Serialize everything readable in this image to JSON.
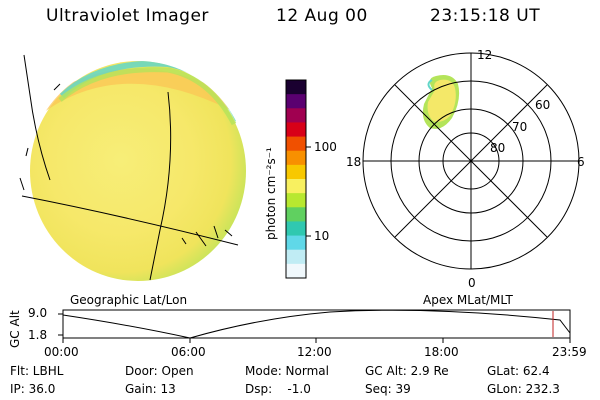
{
  "header": {
    "title": "Ultraviolet Imager",
    "date": "12 Aug 00",
    "time": "23:15:18 UT"
  },
  "colorbar": {
    "label": "photon cm⁻²s⁻¹",
    "ticks": [
      "100",
      "10"
    ],
    "colors": [
      "#1a0030",
      "#5a0070",
      "#a00050",
      "#d80018",
      "#f05000",
      "#f89000",
      "#f8c800",
      "#f8f060",
      "#b8e830",
      "#60d060",
      "#30c8b0",
      "#60d8e8",
      "#c0ecf4",
      "#f0f8fc"
    ]
  },
  "globe": {
    "caption": "Geographic Lat/Lon",
    "colors": {
      "body": "#f6ec6a",
      "rim": "#b4e45a",
      "edge": "#62d6c8",
      "glow": "#fbc656"
    }
  },
  "polar": {
    "caption": "Apex MLat/MLT",
    "mlt_labels": {
      "top": "12",
      "left": "18",
      "right": "6",
      "bottom": "0"
    },
    "lat_labels": [
      "60",
      "70",
      "80"
    ]
  },
  "altitude_plot": {
    "axis_label": "GC Alt",
    "y_ticks": [
      "9.0",
      "1.8"
    ],
    "x_ticks": [
      "00:00",
      "06:00",
      "12:00",
      "18:00",
      "23:59"
    ],
    "marker_color": "#c02020"
  },
  "footer": {
    "rows": [
      [
        "Flt: LBHL",
        "Door: Open",
        "Mode: Normal",
        "GC Alt: 2.9 Re",
        "GLat: 62.4"
      ],
      [
        "IP: 36.0",
        "Gain: 13",
        "Dsp:    -1.0",
        "Seq: 39",
        "GLon: 232.3"
      ]
    ]
  }
}
